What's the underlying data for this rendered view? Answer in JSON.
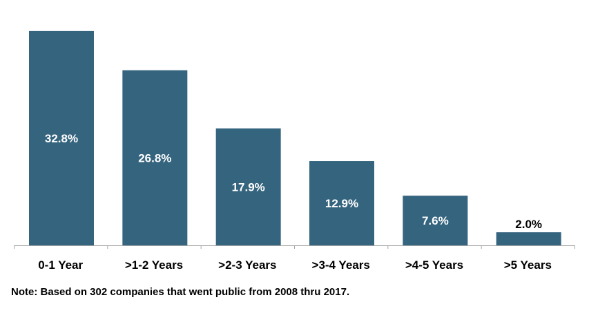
{
  "chart_data": {
    "type": "bar",
    "categories": [
      "0-1 Year",
      ">1-2 Years",
      ">2-3 Years",
      ">3-4 Years",
      ">4-5 Years",
      ">5 Years"
    ],
    "values": [
      32.8,
      26.8,
      17.9,
      12.9,
      7.6,
      2.0
    ],
    "data_labels": [
      "32.8%",
      "26.8%",
      "17.9%",
      "12.9%",
      "7.6%",
      "2.0%"
    ],
    "unit": "%",
    "ylim": [
      0,
      33
    ],
    "grid": false,
    "legend": "none",
    "bar_color": "#35647F",
    "inside_label_color": "#FFFFFF",
    "outside_label_color": "#000000",
    "axis_color": "#A6A6A6"
  },
  "note": "Note:  Based on 302 companies that went public from 2008 thru 2017."
}
